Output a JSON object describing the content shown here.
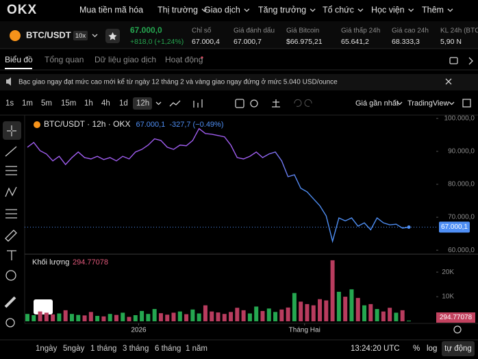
{
  "nav": {
    "logo": "OKX",
    "items": [
      "Mua tiền mã hóa",
      "Thị trường",
      "Giao dịch",
      "Tăng trưởng",
      "Tổ chức",
      "Học viện",
      "Thêm"
    ]
  },
  "ticker": {
    "pair": "BTC/USDT",
    "leverage": "10x",
    "price": "67.000,0",
    "change": "+818,0 (+1,24%)",
    "stats": [
      {
        "label": "Chỉ số",
        "value": "67.000,4"
      },
      {
        "label": "Giá đánh dấu",
        "value": "67.000,7"
      },
      {
        "label": "Giá Bitcoin",
        "value": "$66.975,21"
      },
      {
        "label": "Giá thấp 24h",
        "value": "65.641,2"
      },
      {
        "label": "Giá cao 24h",
        "value": "68.333,3"
      },
      {
        "label": "KL 24h (BTC)",
        "value": "5,90 N"
      }
    ]
  },
  "tabs": [
    "Biểu đồ",
    "Tổng quan",
    "Dữ liệu giao dịch",
    "Hoạt động"
  ],
  "banner": "Bạc giao ngay đạt mức cao mới kể từ ngày 12 tháng 2 và vàng giao ngay đứng ở mức 5.040 USD/ounce",
  "toolbar": {
    "intervals": [
      "1s",
      "1m",
      "5m",
      "15m",
      "1h",
      "4h",
      "1d",
      "12h"
    ],
    "price_source": "Giá gần nhất",
    "view": "TradingView"
  },
  "chart_data": [
    {
      "type": "line",
      "title": "BTC/USDT · 12h · OKX",
      "last_value_label": "67.000,1",
      "change": "-327,7 (−0.49%)",
      "color": "#a15ef2",
      "color_end": "#4f8ff5",
      "values": [
        91250,
        92700,
        90200,
        89200,
        87100,
        88500,
        86000,
        88100,
        89800,
        88100,
        87700,
        88500,
        87500,
        88100,
        87100,
        88500,
        87700,
        89800,
        90600,
        91900,
        93800,
        93300,
        91250,
        90600,
        91900,
        91700,
        93300,
        96900,
        95400,
        95200,
        94800,
        94400,
        91900,
        88100,
        87700,
        88500,
        89800,
        88100,
        89200,
        89800,
        87100,
        82300,
        82900,
        78800,
        77700,
        75600,
        73500,
        70400,
        62700,
        69800,
        68900,
        69800,
        67300,
        68300,
        66200,
        69800,
        68300,
        67700,
        67900,
        66700,
        67000.1
      ],
      "xlim": [
        0,
        60
      ],
      "xticks": [
        {
          "value": 17.5,
          "label": "2026"
        },
        {
          "value": 43.6,
          "label": "Tháng Hai"
        }
      ],
      "ylim": [
        59000,
        101000
      ],
      "yticks": [
        {
          "value": 100000,
          "label": "100.000,0"
        },
        {
          "value": 90000,
          "label": "90.000,0"
        },
        {
          "value": 80000,
          "label": "80.000,0"
        },
        {
          "value": 70000,
          "label": "70.000,0"
        },
        {
          "value": 60000,
          "label": "60.000,0"
        }
      ]
    },
    {
      "type": "bar",
      "title": "Khối lượng",
      "up_color": "#25a750",
      "down_color": "#b83c5e",
      "values": [
        3000,
        2500,
        4000,
        3500,
        2800,
        3200,
        4500,
        3000,
        2600,
        2400,
        3800,
        2200,
        2000,
        3000,
        2600,
        3500,
        1800,
        2500,
        4200,
        3000,
        5000,
        3300,
        2700,
        3500,
        4000,
        2900,
        4800,
        3200,
        6500,
        4000,
        3600,
        3000,
        3800,
        5500,
        4500,
        3200,
        6000,
        4200,
        5200,
        3800,
        4800,
        5600,
        11500,
        8000,
        7000,
        6500,
        9000,
        8500,
        24800,
        12000,
        10000,
        13000,
        9500,
        6500,
        7000,
        5000,
        4000,
        5500,
        3500,
        4500,
        294.77078
      ],
      "ylim": [
        0,
        27000
      ],
      "yticks": [
        {
          "value": 20000,
          "label": "20K"
        },
        {
          "value": 10000,
          "label": "10K"
        }
      ]
    }
  ],
  "range_buttons": [
    "1ngày",
    "5ngày",
    "1 tháng",
    "3 tháng",
    "6 tháng",
    "1 năm"
  ],
  "footer": {
    "clock": "13:24:20 UTC",
    "percent": "%",
    "log": "log",
    "auto": "tự động"
  }
}
